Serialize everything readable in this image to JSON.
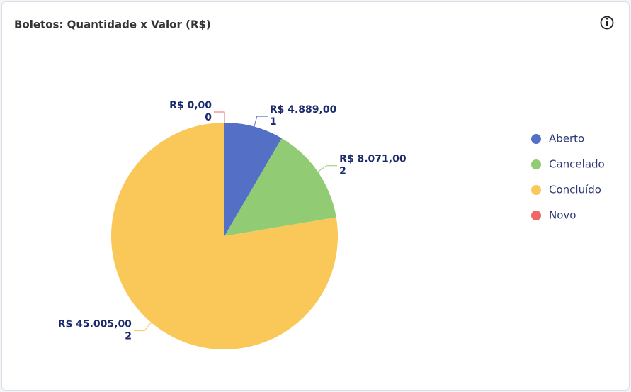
{
  "chart_data": {
    "type": "pie",
    "title": "Boletos: Quantidade x Valor (R$)",
    "categories": [
      "Aberto",
      "Cancelado",
      "Concluído",
      "Novo"
    ],
    "values": [
      4889,
      8071,
      45005,
      0
    ],
    "value_labels": [
      "R$ 4.889,00",
      "R$ 8.071,00",
      "R$ 45.005,00",
      "R$ 0,00"
    ],
    "counts": [
      1,
      2,
      2,
      0
    ],
    "colors": [
      "#5470c6",
      "#91cc75",
      "#fac858",
      "#ee6666"
    ],
    "legend": "right"
  }
}
